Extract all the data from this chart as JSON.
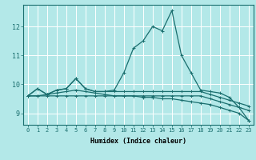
{
  "xlabel": "Humidex (Indice chaleur)",
  "xlim": [
    -0.5,
    23.5
  ],
  "ylim": [
    8.6,
    12.75
  ],
  "xticks": [
    0,
    1,
    2,
    3,
    4,
    5,
    6,
    7,
    8,
    9,
    10,
    11,
    12,
    13,
    14,
    15,
    16,
    17,
    18,
    19,
    20,
    21,
    22,
    23
  ],
  "yticks": [
    9,
    10,
    11,
    12
  ],
  "bg_color": "#b3e8e8",
  "line_color": "#1a6e6e",
  "grid_color": "#ffffff",
  "series": [
    [
      9.6,
      9.85,
      9.65,
      9.8,
      9.85,
      10.2,
      9.85,
      9.75,
      9.75,
      9.8,
      10.4,
      11.25,
      11.5,
      12.0,
      11.85,
      12.55,
      11.0,
      10.4,
      9.8,
      9.75,
      9.7,
      9.55,
      9.2,
      8.75
    ],
    [
      9.6,
      9.85,
      9.65,
      9.8,
      9.85,
      10.2,
      9.85,
      9.75,
      9.75,
      9.75,
      9.75,
      9.75,
      9.75,
      9.75,
      9.75,
      9.75,
      9.75,
      9.75,
      9.75,
      9.65,
      9.55,
      9.45,
      9.35,
      9.25
    ],
    [
      9.6,
      9.6,
      9.6,
      9.6,
      9.6,
      9.6,
      9.6,
      9.6,
      9.6,
      9.6,
      9.6,
      9.6,
      9.6,
      9.6,
      9.6,
      9.6,
      9.6,
      9.6,
      9.6,
      9.5,
      9.4,
      9.3,
      9.2,
      9.1
    ],
    [
      9.6,
      9.6,
      9.65,
      9.7,
      9.75,
      9.8,
      9.75,
      9.7,
      9.65,
      9.6,
      9.6,
      9.6,
      9.55,
      9.55,
      9.5,
      9.5,
      9.45,
      9.4,
      9.35,
      9.3,
      9.2,
      9.1,
      9.0,
      8.75
    ]
  ],
  "marker": "+",
  "markersize": 3.5,
  "linewidth": 0.9,
  "tick_fontsize": 5.0,
  "xlabel_fontsize": 6.0
}
